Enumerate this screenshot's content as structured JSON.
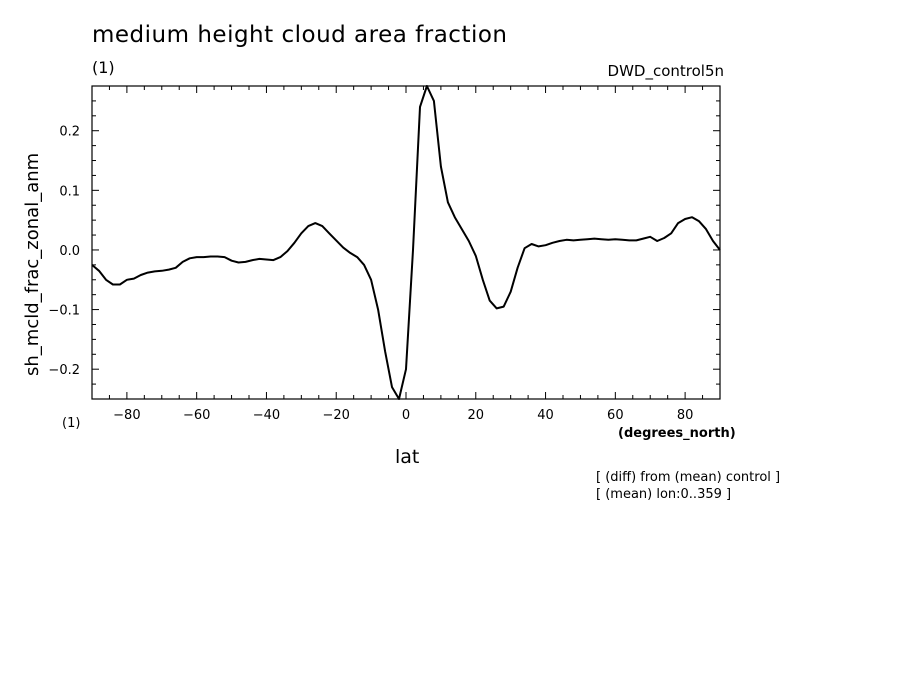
{
  "chart_data": {
    "type": "line",
    "title": "medium height cloud area fraction",
    "units_label": "(1)",
    "run_label": "DWD_control5n",
    "xlabel": "lat",
    "xunits": "(degrees_north)",
    "ylabel": "sh_mcld_frac_zonal_anm",
    "notes": [
      "[ (diff) from (mean) control ]",
      "[ (mean) lon:0..359 ]"
    ],
    "xlim": [
      -90,
      90
    ],
    "ylim": [
      -0.25,
      0.275
    ],
    "xticks": [
      -80,
      -60,
      -40,
      -20,
      0,
      20,
      40,
      60,
      80
    ],
    "xtick_labels": [
      "−80",
      "−60",
      "−40",
      "−20",
      "0",
      "20",
      "40",
      "60",
      "80"
    ],
    "yticks": [
      -0.2,
      -0.1,
      0.0,
      0.1,
      0.2
    ],
    "ytick_labels": [
      "−0.2",
      "−0.1",
      "0.0",
      "0.1",
      "0.2"
    ],
    "grid": false,
    "line_color": "#000000",
    "series": [
      {
        "x": [
          -90,
          -88,
          -86,
          -84,
          -82,
          -80,
          -78,
          -76,
          -74,
          -72,
          -70,
          -68,
          -66,
          -64,
          -62,
          -60,
          -58,
          -56,
          -54,
          -52,
          -50,
          -48,
          -46,
          -44,
          -42,
          -40,
          -38,
          -36,
          -34,
          -32,
          -30,
          -28,
          -26,
          -24,
          -22,
          -20,
          -18,
          -16,
          -14,
          -12,
          -10,
          -8,
          -6,
          -4,
          -2,
          0,
          2,
          4,
          6,
          8,
          10,
          12,
          14,
          16,
          18,
          20,
          22,
          24,
          26,
          28,
          30,
          32,
          34,
          36,
          38,
          40,
          42,
          44,
          46,
          48,
          50,
          52,
          54,
          56,
          58,
          60,
          62,
          64,
          66,
          68,
          70,
          72,
          74,
          76,
          78,
          80,
          82,
          84,
          86,
          88,
          90
        ],
        "values": [
          -0.025,
          -0.035,
          -0.05,
          -0.058,
          -0.058,
          -0.05,
          -0.048,
          -0.042,
          -0.038,
          -0.036,
          -0.035,
          -0.033,
          -0.03,
          -0.02,
          -0.014,
          -0.012,
          -0.012,
          -0.011,
          -0.011,
          -0.012,
          -0.018,
          -0.021,
          -0.02,
          -0.017,
          -0.015,
          -0.016,
          -0.017,
          -0.012,
          -0.002,
          0.012,
          0.028,
          0.04,
          0.045,
          0.04,
          0.028,
          0.016,
          0.004,
          -0.005,
          -0.012,
          -0.025,
          -0.05,
          -0.1,
          -0.17,
          -0.23,
          -0.262,
          -0.2,
          0.0,
          0.24,
          0.278,
          0.25,
          0.14,
          0.08,
          0.055,
          0.035,
          0.015,
          -0.01,
          -0.05,
          -0.085,
          -0.098,
          -0.095,
          -0.07,
          -0.03,
          0.003,
          0.01,
          0.006,
          0.008,
          0.012,
          0.015,
          0.017,
          0.016,
          0.017,
          0.018,
          0.019,
          0.018,
          0.017,
          0.018,
          0.017,
          0.016,
          0.016,
          0.019,
          0.022,
          0.015,
          0.02,
          0.028,
          0.045,
          0.052,
          0.055,
          0.048,
          0.035,
          0.015,
          0.0
        ]
      }
    ]
  }
}
